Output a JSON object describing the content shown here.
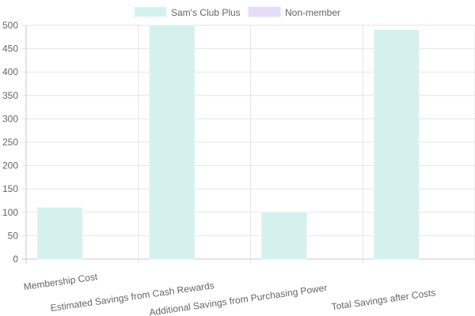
{
  "chart_data": {
    "type": "bar",
    "categories": [
      "Membership Cost",
      "Estimated Savings from Cash Rewards",
      "Additional Savings from Purchasing Power",
      "Total Savings after Costs"
    ],
    "series": [
      {
        "name": "Sam's Club Plus",
        "values": [
          110,
          500,
          100,
          490
        ],
        "color": "#d5f1ed",
        "border_color": "#e2f6f2"
      },
      {
        "name": "Non-member",
        "values": [
          0,
          0,
          0,
          0
        ],
        "color": "#e5dcf7",
        "border_color": "#e5dcf7"
      }
    ],
    "yticks": [
      "0",
      "50",
      "100",
      "150",
      "200",
      "250",
      "300",
      "350",
      "400",
      "450",
      "500"
    ],
    "ylim": [
      0,
      500
    ],
    "grid": true,
    "legend": "top-center"
  }
}
